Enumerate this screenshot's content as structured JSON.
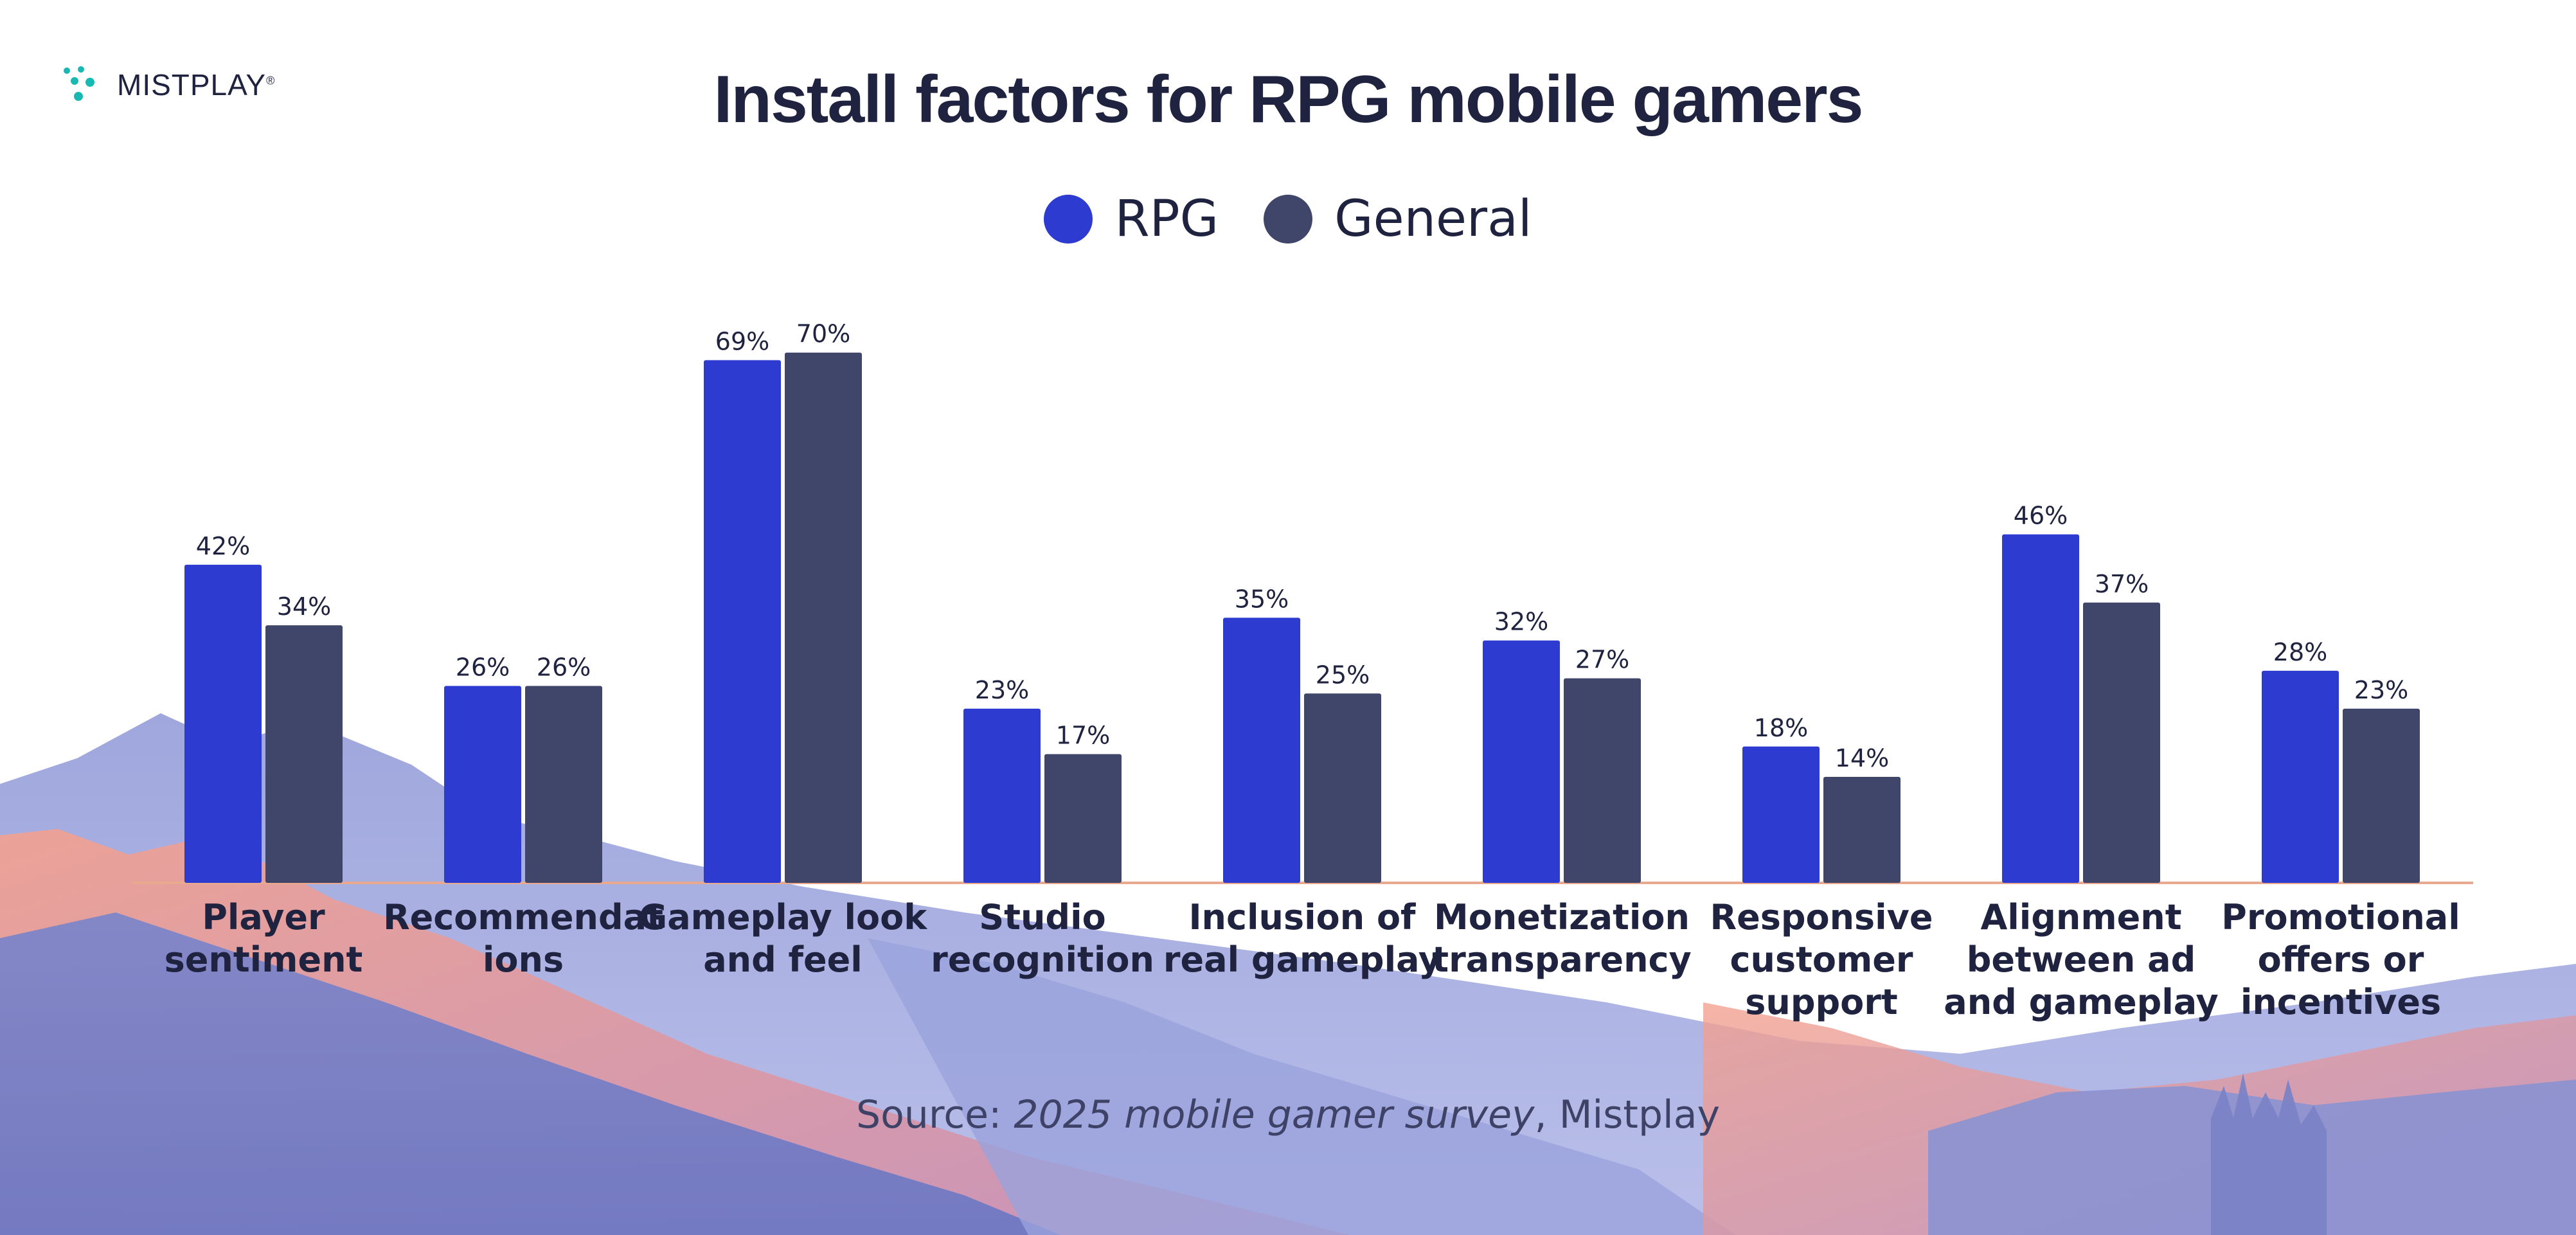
{
  "brand": {
    "name": "MISTPLAY",
    "registered": "®",
    "dot_color": "#18b9b2"
  },
  "colors": {
    "rpg": "#2d3bd1",
    "general": "#40466a",
    "text": "#1f2340",
    "baseline": "#e9a98f"
  },
  "source": {
    "prefix": "Source: ",
    "survey": "2025 mobile gamer survey",
    "suffix": ", Mistplay"
  },
  "chart_data": {
    "type": "bar",
    "title": "Install factors for RPG mobile gamers",
    "categories": [
      [
        "Player",
        "sentiment"
      ],
      [
        "Recommendat",
        "ions"
      ],
      [
        "Gameplay look",
        "and feel"
      ],
      [
        "Studio",
        "recognition"
      ],
      [
        "Inclusion of",
        "real gameplay"
      ],
      [
        "Monetization",
        "transparency"
      ],
      [
        "Responsive",
        "customer",
        "support"
      ],
      [
        "Alignment",
        "between ad",
        "and gameplay"
      ],
      [
        "Promotional",
        "offers or",
        "incentives"
      ]
    ],
    "series": [
      {
        "name": "RPG",
        "color": "#2d3bd1",
        "values": [
          42,
          26,
          69,
          23,
          35,
          32,
          18,
          46,
          28
        ],
        "labels": [
          "42%",
          "26%",
          "69%",
          "23%",
          "35%",
          "32%",
          "18%",
          "46%",
          "28%"
        ]
      },
      {
        "name": "General",
        "color": "#40466a",
        "values": [
          34,
          26,
          70,
          17,
          25,
          27,
          14,
          37,
          23
        ],
        "labels": [
          "34%",
          "26%",
          "70%",
          "17%",
          "25%",
          "27%",
          "14%",
          "37%",
          "23%"
        ]
      }
    ],
    "ylim": [
      0,
      100
    ],
    "xlabel": "",
    "ylabel": "",
    "grid": false,
    "legend_position": "top-center"
  }
}
